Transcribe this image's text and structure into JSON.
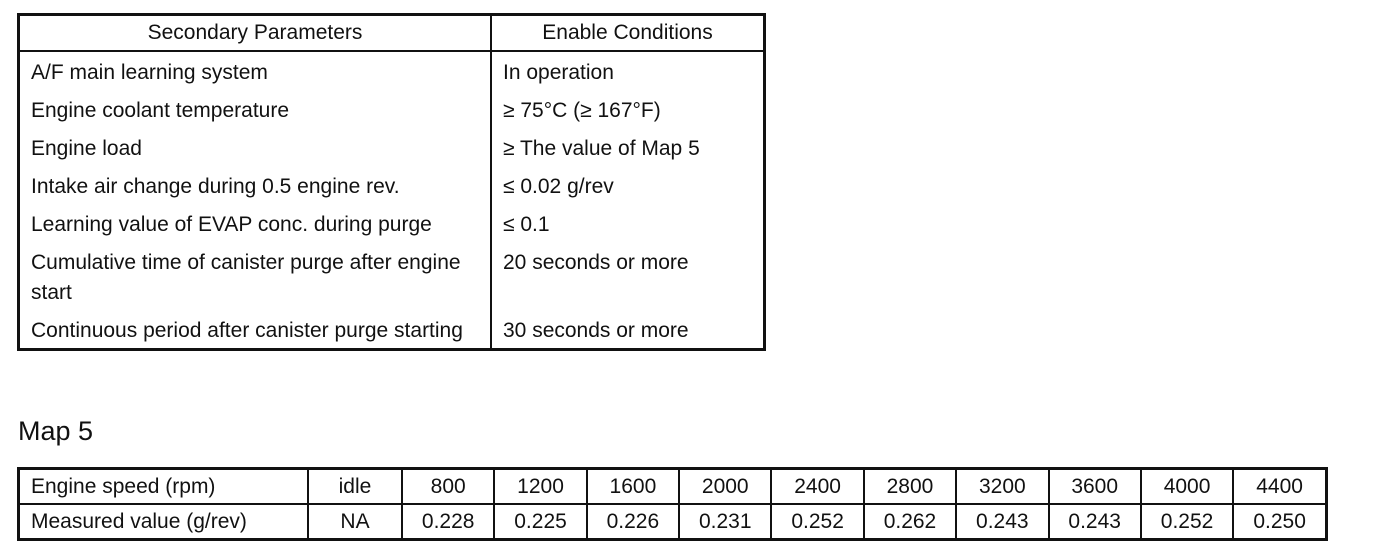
{
  "params_table": {
    "headers": [
      "Secondary Parameters",
      "Enable Conditions"
    ],
    "rows": [
      {
        "param": "A/F main learning system",
        "condition": "In operation"
      },
      {
        "param": "Engine coolant temperature",
        "condition": "≥ 75°C (≥ 167°F)"
      },
      {
        "param": "Engine load",
        "condition": "≥ The value of Map 5"
      },
      {
        "param": "Intake air change during 0.5 engine rev.",
        "condition": "≤ 0.02 g/rev"
      },
      {
        "param": "Learning value of EVAP conc. during purge",
        "condition": "≤ 0.1"
      },
      {
        "param": "Cumulative time of canister purge after engine start",
        "condition": "20 seconds or more"
      },
      {
        "param": "Continuous period after canister purge starting",
        "condition": "30 seconds or more"
      }
    ]
  },
  "map": {
    "title": "Map 5",
    "row1_label": "Engine speed (rpm)",
    "row1_values": [
      "idle",
      "800",
      "1200",
      "1600",
      "2000",
      "2400",
      "2800",
      "3200",
      "3600",
      "4000",
      "4400"
    ],
    "row2_label": "Measured value (g/rev)",
    "row2_values": [
      "NA",
      "0.228",
      "0.225",
      "0.226",
      "0.231",
      "0.252",
      "0.262",
      "0.243",
      "0.243",
      "0.252",
      "0.250"
    ]
  }
}
